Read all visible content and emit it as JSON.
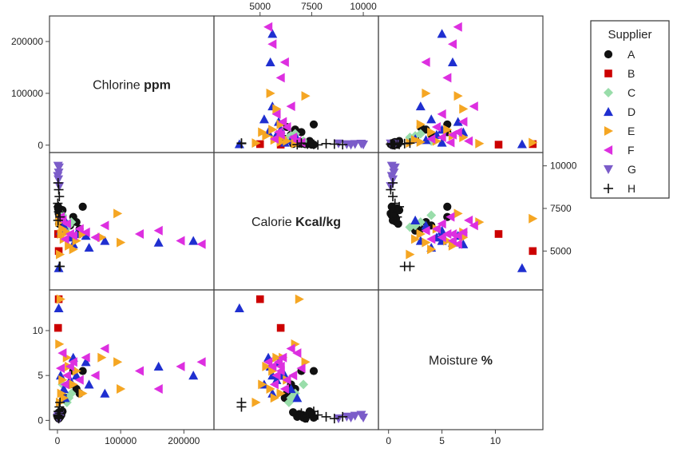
{
  "chart_data": {
    "type": "scatter",
    "subtype": "scatterplot-matrix",
    "variables": [
      {
        "key": "chlorine",
        "name": "Chlorine",
        "unit": "ppm",
        "ticks": [
          0,
          100000,
          200000
        ],
        "range": [
          -5000,
          240000
        ]
      },
      {
        "key": "calorie",
        "name": "Calorie",
        "unit": "Kcal/kg",
        "ticks": [
          5000,
          7500,
          10000
        ],
        "range": [
          3000,
          10500
        ]
      },
      {
        "key": "moisture",
        "name": "Moisture",
        "unit": "%",
        "ticks": [
          0,
          5,
          10
        ],
        "range": [
          -0.5,
          14
        ]
      }
    ],
    "legend": {
      "title": "Supplier",
      "placement": "right",
      "entries": [
        {
          "label": "A",
          "marker": "circle",
          "color": "#111111"
        },
        {
          "label": "B",
          "marker": "square",
          "color": "#cc0000"
        },
        {
          "label": "C",
          "marker": "diamond",
          "color": "#99ddaa"
        },
        {
          "label": "D",
          "marker": "triangle-up",
          "color": "#1f2fd0"
        },
        {
          "label": "E",
          "marker": "triangle-right",
          "color": "#f5a623"
        },
        {
          "label": "F",
          "marker": "triangle-left",
          "color": "#dd2fe0"
        },
        {
          "label": "G",
          "marker": "triangle-down",
          "color": "#7b5cc9"
        },
        {
          "label": "H",
          "marker": "plus",
          "color": "#111111"
        }
      ]
    },
    "series": [
      {
        "name": "A",
        "points": [
          {
            "chlorine": 2000,
            "calorie": 7300,
            "moisture": 0.6
          },
          {
            "chlorine": 3000,
            "calorie": 7100,
            "moisture": 0.3
          },
          {
            "chlorine": 1000,
            "calorie": 7500,
            "moisture": 0.8
          },
          {
            "chlorine": 5000,
            "calorie": 7000,
            "moisture": 0.5
          },
          {
            "chlorine": 4000,
            "calorie": 6800,
            "moisture": 0.4
          },
          {
            "chlorine": 2000,
            "calorie": 7200,
            "moisture": 0.2
          },
          {
            "chlorine": 8000,
            "calorie": 7400,
            "moisture": 1.0
          },
          {
            "chlorine": 3000,
            "calorie": 6900,
            "moisture": 0.7
          },
          {
            "chlorine": 1000,
            "calorie": 7600,
            "moisture": 0.3
          },
          {
            "chlorine": 6000,
            "calorie": 7050,
            "moisture": 0.6
          },
          {
            "chlorine": 2500,
            "calorie": 6600,
            "moisture": 0.9
          },
          {
            "chlorine": 40000,
            "calorie": 7600,
            "moisture": 5.5
          },
          {
            "chlorine": 25000,
            "calorie": 7000,
            "moisture": 5.5
          },
          {
            "chlorine": 30000,
            "calorie": 6700,
            "moisture": 3.5
          },
          {
            "chlorine": 35000,
            "calorie": 6300,
            "moisture": 3.0
          },
          {
            "chlorine": 20000,
            "calorie": 6500,
            "moisture": 4.0
          },
          {
            "chlorine": 12000,
            "calorie": 6200,
            "moisture": 2.5
          }
        ]
      },
      {
        "name": "B",
        "points": [
          {
            "chlorine": 1000,
            "calorie": 6000,
            "moisture": 10.3
          },
          {
            "chlorine": 2000,
            "calorie": 5000,
            "moisture": 13.5
          }
        ]
      },
      {
        "name": "C",
        "points": [
          {
            "chlorine": 22000,
            "calorie": 6700,
            "moisture": 3.0
          },
          {
            "chlorine": 15000,
            "calorie": 6400,
            "moisture": 2.0
          },
          {
            "chlorine": 8000,
            "calorie": 7100,
            "moisture": 4.0
          },
          {
            "chlorine": 18000,
            "calorie": 6500,
            "moisture": 2.5
          }
        ]
      },
      {
        "name": "D",
        "points": [
          {
            "chlorine": 215000,
            "calorie": 5600,
            "moisture": 5.0
          },
          {
            "chlorine": 160000,
            "calorie": 5500,
            "moisture": 6.0
          },
          {
            "chlorine": 75000,
            "calorie": 5600,
            "moisture": 3.0
          },
          {
            "chlorine": 50000,
            "calorie": 5200,
            "moisture": 4.0
          },
          {
            "chlorine": 2000,
            "calorie": 4000,
            "moisture": 12.5
          },
          {
            "chlorine": 30000,
            "calorie": 6000,
            "moisture": 5.0
          },
          {
            "chlorine": 20000,
            "calorie": 5800,
            "moisture": 4.5
          },
          {
            "chlorine": 10000,
            "calorie": 6500,
            "moisture": 3.5
          },
          {
            "chlorine": 5000,
            "calorie": 6200,
            "moisture": 5.0
          },
          {
            "chlorine": 45000,
            "calorie": 5900,
            "moisture": 6.5
          },
          {
            "chlorine": 25000,
            "calorie": 5400,
            "moisture": 7.0
          },
          {
            "chlorine": 12000,
            "calorie": 6800,
            "moisture": 2.5
          }
        ]
      },
      {
        "name": "E",
        "points": [
          {
            "chlorine": 95000,
            "calorie": 7200,
            "moisture": 6.5
          },
          {
            "chlorine": 100000,
            "calorie": 5500,
            "moisture": 3.5
          },
          {
            "chlorine": 70000,
            "calorie": 5800,
            "moisture": 7.0
          },
          {
            "chlorine": 40000,
            "calorie": 6000,
            "moisture": 3.0
          },
          {
            "chlorine": 25000,
            "calorie": 5100,
            "moisture": 4.0
          },
          {
            "chlorine": 10000,
            "calorie": 5700,
            "moisture": 2.5
          },
          {
            "chlorine": 5000,
            "calorie": 6900,
            "moisture": 13.5
          },
          {
            "chlorine": 3000,
            "calorie": 6700,
            "moisture": 8.5
          },
          {
            "chlorine": 15000,
            "calorie": 6100,
            "moisture": 7.0
          },
          {
            "chlorine": 30000,
            "calorie": 5600,
            "moisture": 5.5
          },
          {
            "chlorine": 8000,
            "calorie": 6300,
            "moisture": 4.5
          },
          {
            "chlorine": 18000,
            "calorie": 5300,
            "moisture": 6.0
          },
          {
            "chlorine": 4000,
            "calorie": 4800,
            "moisture": 2.0
          },
          {
            "chlorine": 6000,
            "calorie": 6000,
            "moisture": 3.0
          }
        ]
      },
      {
        "name": "F",
        "points": [
          {
            "chlorine": 228000,
            "calorie": 5400,
            "moisture": 6.5
          },
          {
            "chlorine": 195000,
            "calorie": 5600,
            "moisture": 6.0
          },
          {
            "chlorine": 160000,
            "calorie": 6200,
            "moisture": 3.5
          },
          {
            "chlorine": 130000,
            "calorie": 6000,
            "moisture": 5.5
          },
          {
            "chlorine": 75000,
            "calorie": 6500,
            "moisture": 8.0
          },
          {
            "chlorine": 60000,
            "calorie": 5800,
            "moisture": 5.0
          },
          {
            "chlorine": 45000,
            "calorie": 6100,
            "moisture": 7.0
          },
          {
            "chlorine": 35000,
            "calorie": 6300,
            "moisture": 4.5
          },
          {
            "chlorine": 25000,
            "calorie": 5900,
            "moisture": 6.5
          },
          {
            "chlorine": 15000,
            "calorie": 6600,
            "moisture": 5.0
          },
          {
            "chlorine": 8000,
            "calorie": 6800,
            "moisture": 7.5
          },
          {
            "chlorine": 5000,
            "calorie": 7000,
            "moisture": 5.8
          },
          {
            "chlorine": 12000,
            "calorie": 5700,
            "moisture": 4.0
          },
          {
            "chlorine": 20000,
            "calorie": 6000,
            "moisture": 6.0
          }
        ]
      },
      {
        "name": "G",
        "points": [
          {
            "chlorine": 1000,
            "calorie": 10000,
            "moisture": 0.3
          },
          {
            "chlorine": 2000,
            "calorie": 9600,
            "moisture": 0.5
          },
          {
            "chlorine": 1500,
            "calorie": 9200,
            "moisture": 0.4
          },
          {
            "chlorine": 3000,
            "calorie": 8800,
            "moisture": 0.2
          },
          {
            "chlorine": 2500,
            "calorie": 9900,
            "moisture": 0.6
          },
          {
            "chlorine": 500,
            "calorie": 9400,
            "moisture": 0.3
          }
        ]
      },
      {
        "name": "H",
        "points": [
          {
            "chlorine": 3000,
            "calorie": 4100,
            "moisture": 1.5
          },
          {
            "chlorine": 4000,
            "calorie": 4100,
            "moisture": 2.0
          },
          {
            "chlorine": 1000,
            "calorie": 6800,
            "moisture": 0.5
          },
          {
            "chlorine": 2000,
            "calorie": 7300,
            "moisture": 0.3
          },
          {
            "chlorine": 500,
            "calorie": 7800,
            "moisture": 0.6
          },
          {
            "chlorine": 3000,
            "calorie": 8200,
            "moisture": 0.4
          },
          {
            "chlorine": 1500,
            "calorie": 7600,
            "moisture": 1.0
          },
          {
            "chlorine": 2000,
            "calorie": 8600,
            "moisture": 0.2
          },
          {
            "chlorine": 4000,
            "calorie": 7000,
            "moisture": 0.8
          },
          {
            "chlorine": 1000,
            "calorie": 9000,
            "moisture": 0.4
          }
        ]
      }
    ]
  }
}
